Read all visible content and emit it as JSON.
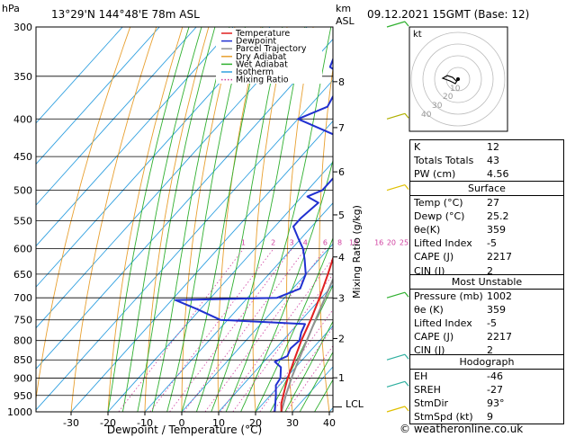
{
  "header": {
    "pressure_unit": "hPa",
    "location": "13°29'N  144°48'E  78m  ASL",
    "km_unit": "km",
    "asl": "ASL",
    "datetime": "09.12.2021  15GMT  (Base: 12)"
  },
  "chart_data": {
    "type": "skew-t log-p",
    "xlabel": "Dewpoint / Temperature (°C)",
    "ylabel_left": "hPa",
    "ylabel_right": "Mixing Ratio (g/kg)",
    "x_ticks": [
      -30,
      -20,
      -10,
      0,
      10,
      20,
      30,
      40
    ],
    "pressure_levels": [
      300,
      350,
      400,
      450,
      500,
      550,
      600,
      650,
      700,
      750,
      800,
      850,
      900,
      950,
      1000
    ],
    "km_ticks": [
      "1",
      "2",
      "3",
      "4",
      "5",
      "6",
      "7",
      "8"
    ],
    "lcl_label": "LCL",
    "mixing_ratio_labels": [
      "1",
      "2",
      "3",
      "4",
      "6",
      "8",
      "10",
      "16",
      "20",
      "25"
    ],
    "legend": [
      {
        "name": "Temperature",
        "color": "#e02020",
        "style": "solid"
      },
      {
        "name": "Dewpoint",
        "color": "#2030d0",
        "style": "solid"
      },
      {
        "name": "Parcel Trajectory",
        "color": "#909090",
        "style": "solid"
      },
      {
        "name": "Dry Adiabat",
        "color": "#e8a030",
        "style": "solid"
      },
      {
        "name": "Wet Adiabat",
        "color": "#30b030",
        "style": "solid"
      },
      {
        "name": "Isotherm",
        "color": "#30a0e0",
        "style": "solid"
      },
      {
        "name": "Mixing Ratio",
        "color": "#d040a0",
        "style": "dotted"
      }
    ],
    "temperature": [
      {
        "p": 1000,
        "t": 27
      },
      {
        "p": 975,
        "t": 25
      },
      {
        "p": 950,
        "t": 23.5
      },
      {
        "p": 925,
        "t": 22
      },
      {
        "p": 900,
        "t": 20.5
      },
      {
        "p": 850,
        "t": 17.8
      },
      {
        "p": 800,
        "t": 15
      },
      {
        "p": 750,
        "t": 12.5
      },
      {
        "p": 700,
        "t": 9.5
      },
      {
        "p": 650,
        "t": 6
      },
      {
        "p": 600,
        "t": 2
      },
      {
        "p": 550,
        "t": -2.5
      },
      {
        "p": 500,
        "t": -6.5
      },
      {
        "p": 450,
        "t": -11.5
      },
      {
        "p": 400,
        "t": -17
      },
      {
        "p": 370,
        "t": -22
      },
      {
        "p": 350,
        "t": -26
      },
      {
        "p": 320,
        "t": -33
      },
      {
        "p": 300,
        "t": -37
      }
    ],
    "dewpoint": [
      {
        "p": 1000,
        "t": 25.2
      },
      {
        "p": 950,
        "t": 21.5
      },
      {
        "p": 920,
        "t": 19
      },
      {
        "p": 900,
        "t": 18.5
      },
      {
        "p": 870,
        "t": 16
      },
      {
        "p": 855,
        "t": 13
      },
      {
        "p": 840,
        "t": 15
      },
      {
        "p": 820,
        "t": 14
      },
      {
        "p": 800,
        "t": 14.5
      },
      {
        "p": 780,
        "t": 13
      },
      {
        "p": 760,
        "t": 12
      },
      {
        "p": 750,
        "t": -12
      },
      {
        "p": 725,
        "t": -21
      },
      {
        "p": 705,
        "t": -29
      },
      {
        "p": 700,
        "t": -2
      },
      {
        "p": 680,
        "t": 2
      },
      {
        "p": 650,
        "t": 0
      },
      {
        "p": 620,
        "t": -4
      },
      {
        "p": 600,
        "t": -7
      },
      {
        "p": 580,
        "t": -11
      },
      {
        "p": 560,
        "t": -15
      },
      {
        "p": 545,
        "t": -15
      },
      {
        "p": 520,
        "t": -14
      },
      {
        "p": 510,
        "t": -18.5
      },
      {
        "p": 500,
        "t": -16
      },
      {
        "p": 480,
        "t": -16
      },
      {
        "p": 460,
        "t": -15
      },
      {
        "p": 450,
        "t": -16
      },
      {
        "p": 440,
        "t": -19
      },
      {
        "p": 430,
        "t": -20
      },
      {
        "p": 400,
        "t": -40
      },
      {
        "p": 385,
        "t": -35
      },
      {
        "p": 350,
        "t": -38
      },
      {
        "p": 340,
        "t": -44
      },
      {
        "p": 325,
        "t": -46
      },
      {
        "p": 300,
        "t": -51
      }
    ],
    "parcel": [
      {
        "p": 1000,
        "t": 27
      },
      {
        "p": 975,
        "t": 25.6
      },
      {
        "p": 950,
        "t": 24.2
      },
      {
        "p": 900,
        "t": 21.5
      },
      {
        "p": 850,
        "t": 19
      },
      {
        "p": 800,
        "t": 16.5
      },
      {
        "p": 750,
        "t": 13.8
      },
      {
        "p": 700,
        "t": 11
      },
      {
        "p": 650,
        "t": 8
      },
      {
        "p": 600,
        "t": 4.7
      },
      {
        "p": 550,
        "t": 1
      },
      {
        "p": 500,
        "t": -3
      },
      {
        "p": 450,
        "t": -7.5
      },
      {
        "p": 400,
        "t": -13
      },
      {
        "p": 350,
        "t": -19.5
      },
      {
        "p": 300,
        "t": -27
      }
    ],
    "wind_barbs_pressure": [
      300,
      400,
      500,
      700,
      850,
      925,
      1000
    ]
  },
  "hodograph": {
    "unit": "kt",
    "ring_labels": [
      "40",
      "30",
      "20",
      "10"
    ]
  },
  "indices": {
    "k_label": "K",
    "k_value": "12",
    "tt_label": "Totals Totals",
    "tt_value": "43",
    "pw_label": "PW (cm)",
    "pw_value": "4.56"
  },
  "surface": {
    "title": "Surface",
    "rows": [
      {
        "k": "Temp (°C)",
        "v": "27"
      },
      {
        "k": "Dewp (°C)",
        "v": "25.2"
      },
      {
        "k": "θe(K)",
        "v": "359"
      },
      {
        "k": "Lifted Index",
        "v": "-5"
      },
      {
        "k": "CAPE (J)",
        "v": "2217"
      },
      {
        "k": "CIN (J)",
        "v": "2"
      }
    ]
  },
  "most_unstable": {
    "title": "Most Unstable",
    "rows": [
      {
        "k": "Pressure (mb)",
        "v": "1002"
      },
      {
        "k": "θe (K)",
        "v": "359"
      },
      {
        "k": "Lifted Index",
        "v": "-5"
      },
      {
        "k": "CAPE (J)",
        "v": "2217"
      },
      {
        "k": "CIN (J)",
        "v": "2"
      }
    ]
  },
  "hodograph_params": {
    "title": "Hodograph",
    "rows": [
      {
        "k": "EH",
        "v": "-46"
      },
      {
        "k": "SREH",
        "v": "-27"
      },
      {
        "k": "StmDir",
        "v": "93°"
      },
      {
        "k": "StmSpd (kt)",
        "v": "9"
      }
    ]
  },
  "footer": "© weatheronline.co.uk"
}
